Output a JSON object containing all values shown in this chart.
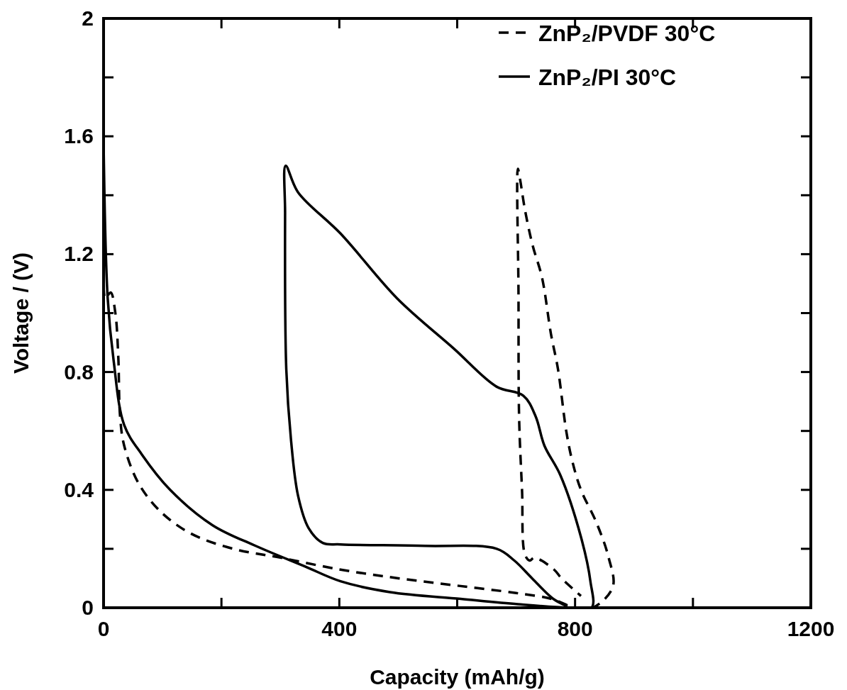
{
  "chart_data": {
    "type": "line",
    "xlabel": "Capacity (mAh/g)",
    "ylabel": "Voltage / (V)",
    "xlim": [
      0,
      1200
    ],
    "ylim": [
      0,
      2
    ],
    "xticks": [
      0,
      {
        "value": 200,
        "label": null
      },
      400,
      {
        "value": 600,
        "label": null
      },
      800,
      {
        "value": 1000,
        "label": null
      },
      1200
    ],
    "yticks": [
      0,
      {
        "value": 0.2,
        "label": null
      },
      0.4,
      {
        "value": 0.6,
        "label": null
      },
      0.8,
      {
        "value": 1.0,
        "label": null
      },
      1.2,
      {
        "value": 1.4,
        "label": null
      },
      1.6,
      {
        "value": 1.8,
        "label": null
      },
      2
    ],
    "grid": false,
    "legend": "top right",
    "marker": "none",
    "series": [
      {
        "name": "ZnP₂/PVDF 30°C",
        "color": "#000000",
        "line_style": "dashed",
        "x": [
          0,
          3,
          12,
          20,
          25,
          28,
          35,
          60,
          100,
          150,
          220,
          300,
          400,
          500,
          600,
          700,
          760,
          800,
          830,
          864,
          857,
          836,
          810,
          795,
          785,
          771,
          759,
          744,
          728,
          715,
          707,
          703,
          704,
          705,
          710,
          715,
          723,
          731,
          764,
          777,
          810
        ],
        "values": [
          1.15,
          1.05,
          1.07,
          1.0,
          0.85,
          0.65,
          0.55,
          0.42,
          0.32,
          0.25,
          0.2,
          0.17,
          0.13,
          0.1,
          0.075,
          0.05,
          0.03,
          0.0,
          0.0,
          0.07,
          0.17,
          0.29,
          0.4,
          0.5,
          0.6,
          0.81,
          0.93,
          1.12,
          1.23,
          1.35,
          1.45,
          1.49,
          1.07,
          0.65,
          0.4,
          0.18,
          0.16,
          0.17,
          0.13,
          0.1,
          0.04
        ]
      },
      {
        "name": "ZnP₂/PI 30°C",
        "color": "#000000",
        "line_style": "solid",
        "x": [
          0,
          7,
          17,
          35,
          65,
          113,
          185,
          258,
          342,
          402,
          486,
          606,
          703,
          787,
          828,
          826,
          810,
          775,
          748,
          733,
          712,
          667,
          594,
          498,
          402,
          330,
          309,
          308,
          310,
          318,
          330,
          348,
          372,
          402,
          546,
          667,
          697,
          727,
          763,
          787
        ],
        "values": [
          1.58,
          1.05,
          0.84,
          0.62,
          0.52,
          0.4,
          0.28,
          0.21,
          0.14,
          0.09,
          0.053,
          0.03,
          0.012,
          0.0,
          0.0,
          0.09,
          0.24,
          0.45,
          0.55,
          0.65,
          0.72,
          0.75,
          0.88,
          1.05,
          1.27,
          1.41,
          1.5,
          1.34,
          0.81,
          0.57,
          0.38,
          0.27,
          0.22,
          0.215,
          0.21,
          0.2,
          0.16,
          0.1,
          0.03,
          0.005
        ]
      }
    ]
  }
}
